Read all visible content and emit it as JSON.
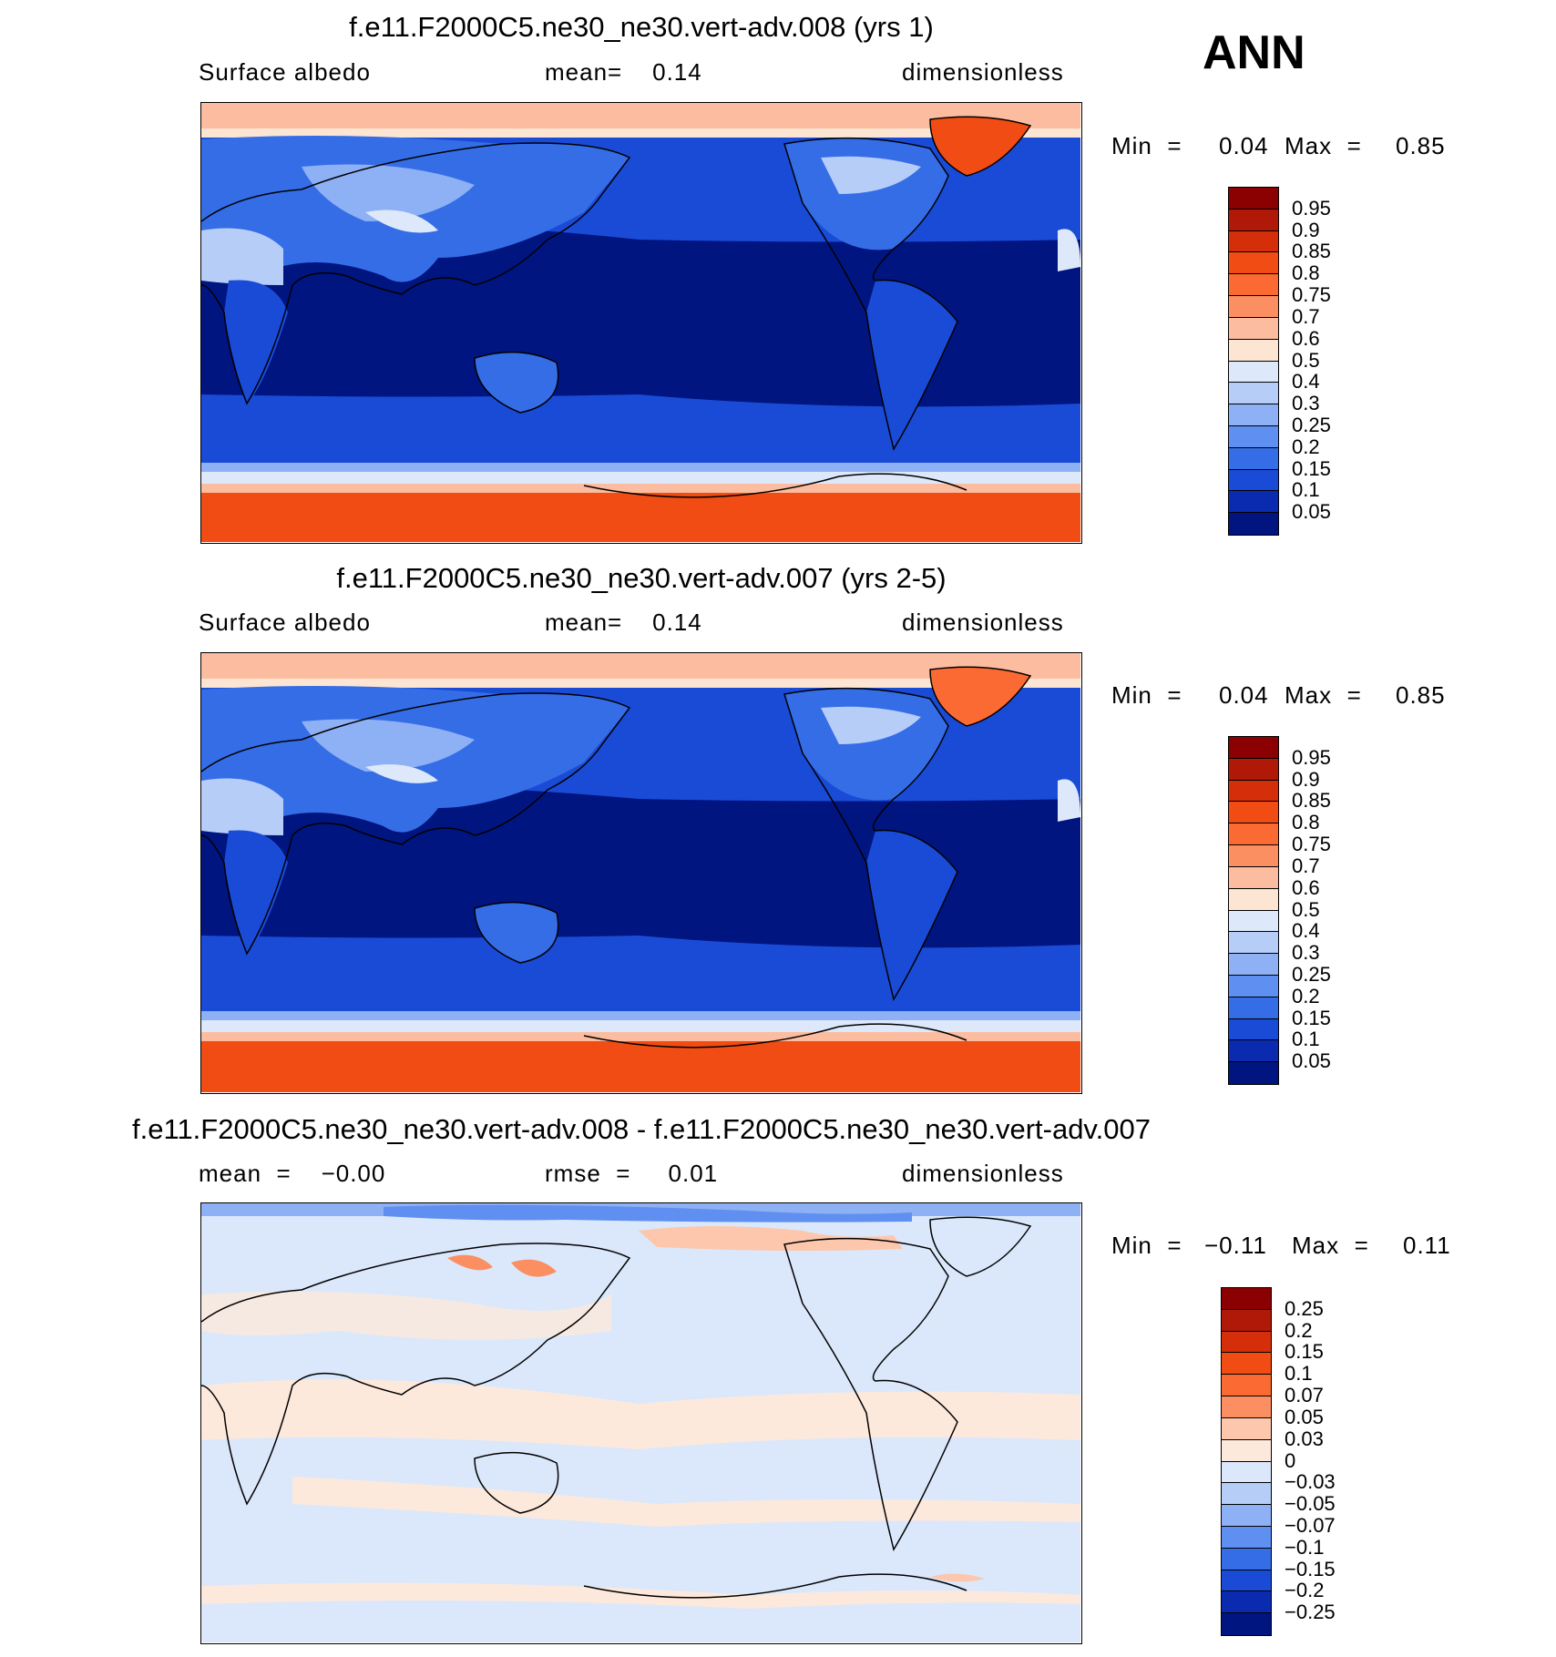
{
  "season": "ANN",
  "panels": [
    {
      "title": "f.e11.F2000C5.ne30_ne30.vert-adv.008 (yrs 1)",
      "left_label": "Surface  albedo",
      "center_label": "mean=    0.14",
      "right_label": "dimensionless",
      "min_label": "Min  =",
      "min_value": "0.04",
      "max_label": "Max  =",
      "max_value": "0.85",
      "field": "absolute",
      "colorbar": {
        "levels": [
          "0.95",
          "0.9",
          "0.85",
          "0.8",
          "0.75",
          "0.7",
          "0.6",
          "0.5",
          "0.4",
          "0.3",
          "0.25",
          "0.2",
          "0.15",
          "0.1",
          "0.05"
        ],
        "colors": [
          "#8b0000",
          "#b01808",
          "#d52e0a",
          "#f04c14",
          "#fb6a32",
          "#fc8f62",
          "#fcbc9f",
          "#fde5d4",
          "#dde9fb",
          "#b6cdf8",
          "#8eb1f5",
          "#5f8ff0",
          "#356de6",
          "#1a4bd6",
          "#0a2aaf",
          "#001580"
        ]
      }
    },
    {
      "title": "f.e11.F2000C5.ne30_ne30.vert-adv.007 (yrs 2-5)",
      "left_label": "Surface  albedo",
      "center_label": "mean=    0.14",
      "right_label": "dimensionless",
      "min_label": "Min  =",
      "min_value": "0.04",
      "max_label": "Max  =",
      "max_value": "0.85",
      "field": "absolute",
      "colorbar": {
        "levels": [
          "0.95",
          "0.9",
          "0.85",
          "0.8",
          "0.75",
          "0.7",
          "0.6",
          "0.5",
          "0.4",
          "0.3",
          "0.25",
          "0.2",
          "0.15",
          "0.1",
          "0.05"
        ],
        "colors": [
          "#8b0000",
          "#b01808",
          "#d52e0a",
          "#f04c14",
          "#fb6a32",
          "#fc8f62",
          "#fcbc9f",
          "#fde5d4",
          "#dde9fb",
          "#b6cdf8",
          "#8eb1f5",
          "#5f8ff0",
          "#356de6",
          "#1a4bd6",
          "#0a2aaf",
          "#001580"
        ]
      }
    },
    {
      "title": "f.e11.F2000C5.ne30_ne30.vert-adv.008 - f.e11.F2000C5.ne30_ne30.vert-adv.007",
      "left_label": "mean  =    −0.00",
      "center_label": "rmse  =     0.01",
      "right_label": "dimensionless",
      "min_label": "Min  =",
      "min_value": "−0.11",
      "max_label": "Max  =",
      "max_value": "0.11",
      "field": "difference",
      "colorbar": {
        "levels": [
          "0.25",
          "0.2",
          "0.15",
          "0.1",
          "0.07",
          "0.05",
          "0.03",
          "0",
          "−0.03",
          "−0.05",
          "−0.07",
          "−0.1",
          "−0.15",
          "−0.2",
          "−0.25"
        ],
        "colors": [
          "#8b0000",
          "#b01808",
          "#d52e0a",
          "#f04c14",
          "#fb6a32",
          "#fc8f62",
          "#fcc7ad",
          "#fde9dc",
          "#dbe8fb",
          "#b6cdf8",
          "#8eb1f5",
          "#5f8ff0",
          "#356de6",
          "#1a4bd6",
          "#0a2aaf",
          "#001580"
        ]
      }
    }
  ]
}
